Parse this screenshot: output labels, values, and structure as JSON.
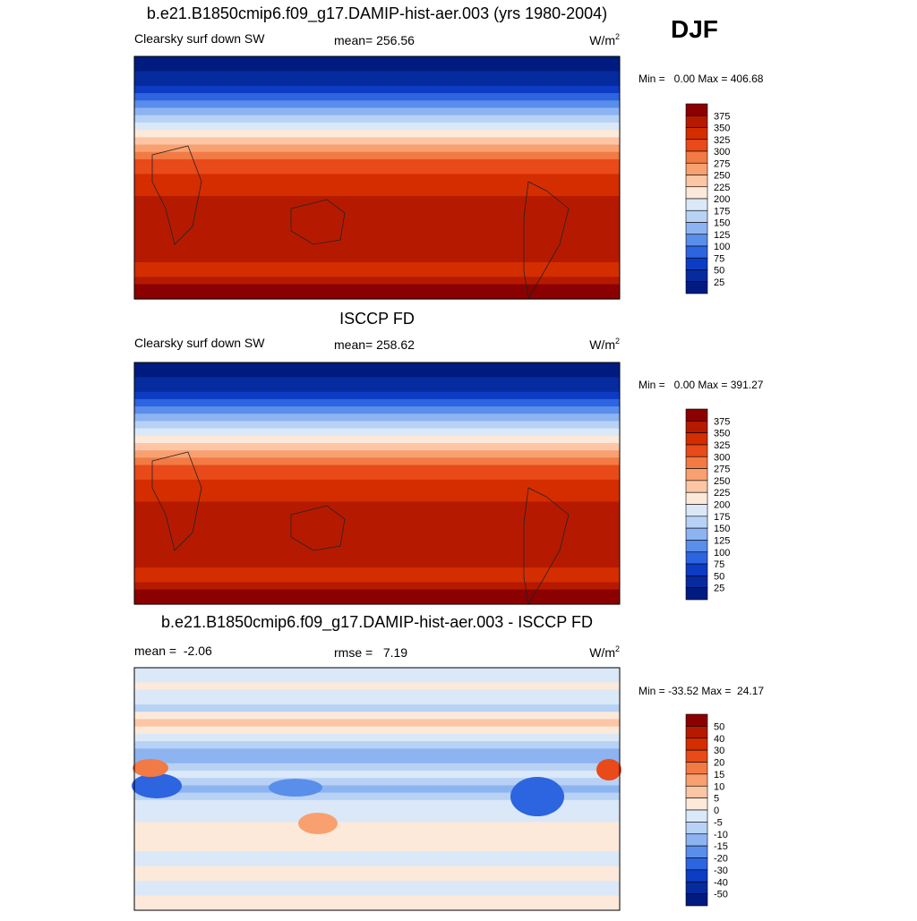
{
  "season": "DJF",
  "panels": [
    {
      "title": "b.e21.B1850cmip6.f09_g17.DAMIP-hist-aer.003 (yrs 1980-2004)",
      "left_label": "Clearsky surf down SW",
      "center_label": "mean= 256.56",
      "units": "W/m",
      "units_exponent": "2",
      "min_max": "Min =   0.00 Max = 406.68",
      "levels": [
        375,
        350,
        325,
        300,
        275,
        250,
        225,
        200,
        175,
        150,
        125,
        100,
        75,
        50,
        25
      ],
      "colors": [
        "#8b0000",
        "#b51a00",
        "#d42d00",
        "#e84a1a",
        "#f27a45",
        "#f9a070",
        "#fcc6a6",
        "#fde9da",
        "#dae8f8",
        "#b8d2f5",
        "#8db4f1",
        "#5a8eeb",
        "#2d64e0",
        "#0d3cc4",
        "#052b9e",
        "#001b80"
      ]
    },
    {
      "title": "ISCCP FD",
      "left_label": "Clearsky surf down SW",
      "center_label": "mean= 258.62",
      "units": "W/m",
      "units_exponent": "2",
      "min_max": "Min =   0.00 Max = 391.27",
      "levels": [
        375,
        350,
        325,
        300,
        275,
        250,
        225,
        200,
        175,
        150,
        125,
        100,
        75,
        50,
        25
      ],
      "colors": [
        "#8b0000",
        "#b51a00",
        "#d42d00",
        "#e84a1a",
        "#f27a45",
        "#f9a070",
        "#fcc6a6",
        "#fde9da",
        "#dae8f8",
        "#b8d2f5",
        "#8db4f1",
        "#5a8eeb",
        "#2d64e0",
        "#0d3cc4",
        "#052b9e",
        "#001b80"
      ]
    },
    {
      "title": "b.e21.B1850cmip6.f09_g17.DAMIP-hist-aer.003 - ISCCP FD",
      "left_label": "mean =  -2.06",
      "center_label": "rmse =   7.19",
      "units": "W/m",
      "units_exponent": "2",
      "min_max": "Min = -33.52 Max =  24.17",
      "levels": [
        50,
        40,
        30,
        20,
        15,
        10,
        5,
        0,
        -5,
        -10,
        -15,
        -20,
        -30,
        -40,
        -50
      ],
      "colors": [
        "#8b0000",
        "#b51a00",
        "#d42d00",
        "#e84a1a",
        "#f27a45",
        "#f9a070",
        "#fcc6a6",
        "#fde9da",
        "#dae8f8",
        "#b8d2f5",
        "#8db4f1",
        "#5a8eeb",
        "#2d64e0",
        "#0d3cc4",
        "#052b9e",
        "#001b80"
      ]
    }
  ]
}
